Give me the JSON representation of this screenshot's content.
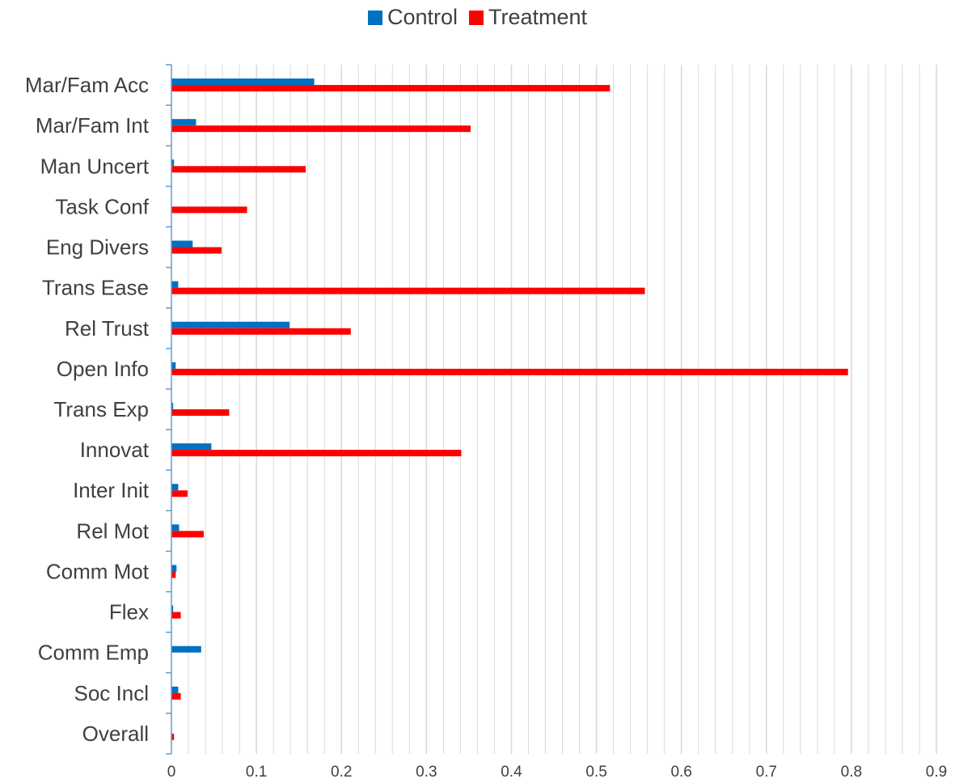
{
  "chart_data": {
    "type": "bar",
    "orientation": "horizontal",
    "categories": [
      "Mar/Fam Acc",
      "Mar/Fam Int",
      "Man Uncert",
      "Task Conf",
      "Eng Divers",
      "Trans Ease",
      "Rel Trust",
      "Open Info",
      "Trans Exp",
      "Innovat",
      "Inter Init",
      "Rel Mot",
      "Comm Mot",
      "Flex",
      "Comm Emp",
      "Soc Incl",
      "Overall"
    ],
    "series": [
      {
        "name": "Control",
        "color": "#0070c0",
        "values": [
          0.168,
          0.029,
          0.003,
          0.0,
          0.025,
          0.008,
          0.139,
          0.005,
          0.002,
          0.047,
          0.008,
          0.009,
          0.006,
          0.002,
          0.035,
          0.008,
          0.0
        ]
      },
      {
        "name": "Treatment",
        "color": "#ff0000",
        "values": [
          0.516,
          0.352,
          0.158,
          0.089,
          0.059,
          0.557,
          0.211,
          0.796,
          0.068,
          0.341,
          0.019,
          0.038,
          0.005,
          0.011,
          0.0,
          0.011,
          0.003
        ]
      }
    ],
    "xlim": [
      0,
      0.9
    ],
    "xticks": [
      "0",
      "0.1",
      "0.2",
      "0.3",
      "0.4",
      "0.5",
      "0.6",
      "0.7",
      "0.8",
      "0.9"
    ],
    "xminor_step": 0.02,
    "grid": true,
    "legend_position": "top",
    "axis_color": "#5b9bd5",
    "gridline_color": "#d9d9d9"
  }
}
